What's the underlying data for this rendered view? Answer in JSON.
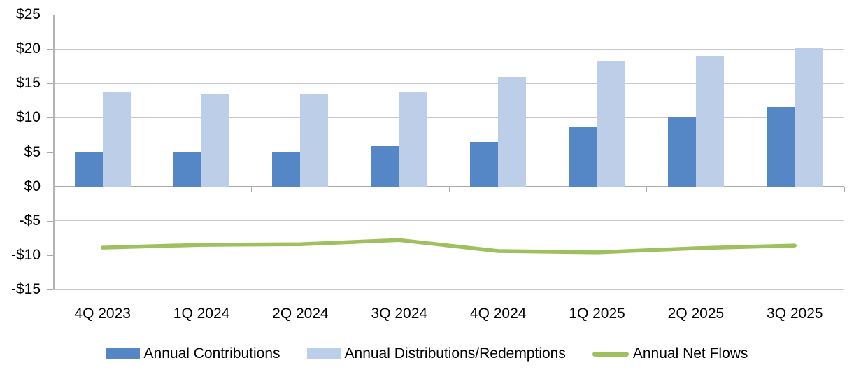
{
  "chart_data": {
    "type": "combo",
    "subtype": "grouped-bar-with-line",
    "title": "",
    "xlabel": "",
    "ylabel": "",
    "categories": [
      "4Q 2023",
      "1Q 2024",
      "2Q 2024",
      "3Q 2024",
      "4Q 2024",
      "1Q 2025",
      "2Q 2025",
      "3Q 2025"
    ],
    "series": [
      {
        "name": "Annual Contributions",
        "type": "bar",
        "color": "#5586c5",
        "values": [
          4.9,
          5.0,
          5.1,
          5.9,
          6.5,
          8.7,
          10.0,
          11.6
        ]
      },
      {
        "name": "Annual Distributions/Redemptions",
        "type": "bar",
        "color": "#bdcfe8",
        "values": [
          13.8,
          13.5,
          13.5,
          13.7,
          15.9,
          18.3,
          19.0,
          20.2
        ]
      },
      {
        "name": "Annual Net Flows",
        "type": "line",
        "color": "#9ec05e",
        "values": [
          -8.9,
          -8.5,
          -8.4,
          -7.8,
          -9.4,
          -9.6,
          -9.0,
          -8.6
        ]
      }
    ],
    "ylim": [
      -15,
      25
    ],
    "y_tick_step": 5,
    "y_tick_labels": [
      "$25",
      "$20",
      "$15",
      "$10",
      "$5",
      "$0",
      "-$5",
      "-$10",
      "-$15"
    ],
    "grid": true,
    "legend_position": "bottom",
    "style": {
      "grid_color": "#c8c8c8",
      "axis_color": "#a9a9a9",
      "text_color": "#000000",
      "background": "#ffffff"
    }
  }
}
